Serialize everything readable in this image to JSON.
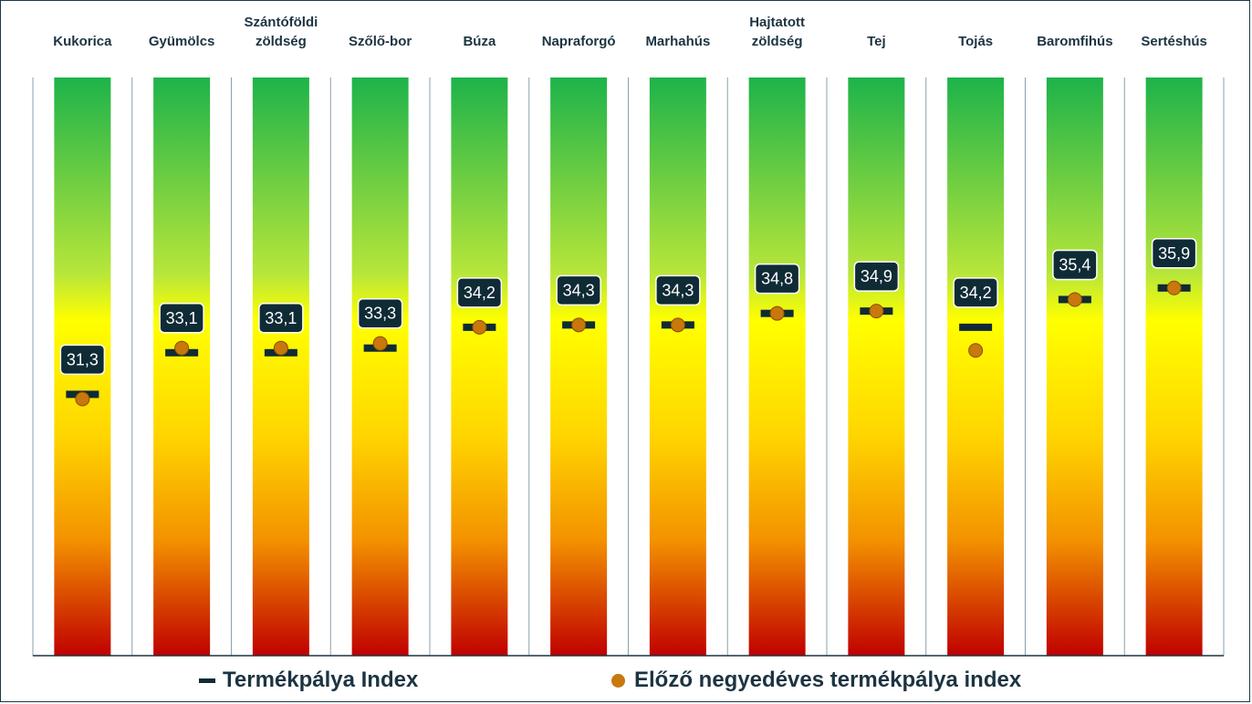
{
  "chart_data": {
    "type": "bullet",
    "categories": [
      "Kukorica",
      "Gyümölcs",
      "Szántóföldi\nzöldség",
      "Szőlő-bor",
      "Búza",
      "Napraforgó",
      "Marhahús",
      "Hajtatott\nzöldség",
      "Tej",
      "Tojás",
      "Baromfihús",
      "Sertéshús"
    ],
    "series": [
      {
        "name": "Termékpálya Index",
        "marker": "dash",
        "color": "#0f2b35",
        "values": [
          31.3,
          33.1,
          33.1,
          33.3,
          34.2,
          34.3,
          34.3,
          34.8,
          34.9,
          34.2,
          35.4,
          35.9
        ]
      },
      {
        "name": "Előző negyedéves termékpálya index",
        "marker": "dot",
        "color": "#c8780c",
        "values": [
          31.1,
          33.3,
          33.3,
          33.5,
          34.2,
          34.3,
          34.3,
          34.8,
          34.9,
          33.2,
          35.4,
          35.9
        ]
      }
    ],
    "data_labels": [
      "31,3",
      "33,1",
      "33,1",
      "33,3",
      "34,2",
      "34,3",
      "34,3",
      "34,8",
      "34,9",
      "34,2",
      "35,4",
      "35,9"
    ],
    "ylim": [
      20,
      45
    ],
    "gradient": {
      "top": "#1db34a",
      "middle": "#ffff00",
      "bottom": "#c00000"
    },
    "legend": {
      "position": "bottom"
    }
  }
}
